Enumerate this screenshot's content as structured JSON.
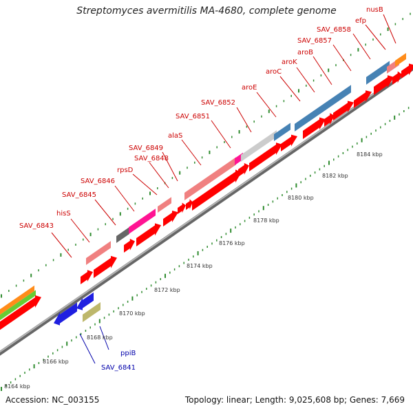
{
  "title": "Streptomyces avermitilis MA-4680, complete genome",
  "footer": {
    "accession": "Accession: NC_003155",
    "stats": "Topology: linear; Length: 9,025,608 bp; Genes: 7,669"
  },
  "colors": {
    "backbone": "#8c8c8c",
    "tick": "#2e8b2e",
    "cds": "#ff0000",
    "cds_reverse": "#1f1fe0",
    "label_forward": "#cc0000",
    "label_reverse": "#0000aa"
  },
  "scale_labels": [
    "8164 kbp",
    "8166 kbp",
    "8168 kbp",
    "8170 kbp",
    "8172 kbp",
    "8174 kbp",
    "8176 kbp",
    "8178 kbp",
    "8180 kbp",
    "8182 kbp",
    "8184 kbp"
  ],
  "gene_labels": [
    {
      "name": "SAV_6843",
      "color": "#cc0000"
    },
    {
      "name": "hisS",
      "color": "#cc0000"
    },
    {
      "name": "SAV_6845",
      "color": "#cc0000"
    },
    {
      "name": "SAV_6846",
      "color": "#cc0000"
    },
    {
      "name": "rpsD",
      "color": "#cc0000"
    },
    {
      "name": "SAV_6848",
      "color": "#cc0000"
    },
    {
      "name": "SAV_6849",
      "color": "#cc0000"
    },
    {
      "name": "alaS",
      "color": "#cc0000"
    },
    {
      "name": "SAV_6851",
      "color": "#cc0000"
    },
    {
      "name": "SAV_6852",
      "color": "#cc0000"
    },
    {
      "name": "aroE",
      "color": "#cc0000"
    },
    {
      "name": "aroC",
      "color": "#cc0000"
    },
    {
      "name": "aroK",
      "color": "#cc0000"
    },
    {
      "name": "aroB",
      "color": "#cc0000"
    },
    {
      "name": "SAV_6857",
      "color": "#cc0000"
    },
    {
      "name": "SAV_6858",
      "color": "#cc0000"
    },
    {
      "name": "efp",
      "color": "#cc0000"
    },
    {
      "name": "nusB",
      "color": "#cc0000"
    },
    {
      "name": "ppiB",
      "color": "#0000aa"
    },
    {
      "name": "SAV_6841",
      "color": "#0000aa"
    }
  ]
}
